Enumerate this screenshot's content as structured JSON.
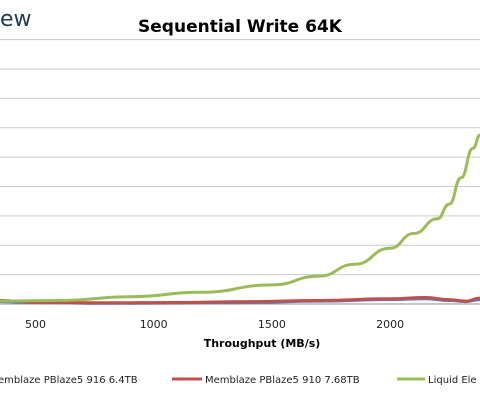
{
  "brand": {
    "text": "ew"
  },
  "chart_data": {
    "type": "line",
    "title": "Sequential Write 64K",
    "xlabel": "Throughput (MB/s)",
    "ylabel": "",
    "xlim": [
      350,
      2380
    ],
    "ylim": [
      0,
      9.6
    ],
    "x_ticks": [
      500,
      1000,
      1500,
      2000
    ],
    "y_gridlines": [
      1,
      2,
      3,
      4,
      5,
      6,
      7,
      8,
      9
    ],
    "grid": true,
    "legend_position": "bottom",
    "series": [
      {
        "name": "emblaze PBlaze5 916 6.4TB",
        "color": "#4f81bd",
        "points": [
          [
            350,
            0.08
          ],
          [
            500,
            0.05
          ],
          [
            800,
            0.02
          ],
          [
            1100,
            0.03
          ],
          [
            1400,
            0.05
          ],
          [
            1700,
            0.1
          ],
          [
            2000,
            0.15
          ],
          [
            2150,
            0.18
          ],
          [
            2250,
            0.12
          ],
          [
            2320,
            0.08
          ],
          [
            2380,
            0.15
          ]
        ]
      },
      {
        "name": "Memblaze PBlaze5 910 7.68TB",
        "color": "#c0504d",
        "points": [
          [
            350,
            0.12
          ],
          [
            500,
            0.06
          ],
          [
            800,
            0.04
          ],
          [
            1100,
            0.05
          ],
          [
            1400,
            0.08
          ],
          [
            1700,
            0.12
          ],
          [
            2000,
            0.18
          ],
          [
            2150,
            0.22
          ],
          [
            2250,
            0.15
          ],
          [
            2320,
            0.1
          ],
          [
            2380,
            0.2
          ]
        ]
      },
      {
        "name": "Liquid Ele",
        "color": "#9bbb59",
        "points": [
          [
            350,
            0.1
          ],
          [
            600,
            0.12
          ],
          [
            900,
            0.25
          ],
          [
            1200,
            0.4
          ],
          [
            1500,
            0.65
          ],
          [
            1700,
            0.95
          ],
          [
            1850,
            1.35
          ],
          [
            2000,
            1.9
          ],
          [
            2100,
            2.4
          ],
          [
            2200,
            2.9
          ],
          [
            2250,
            3.4
          ],
          [
            2300,
            4.3
          ],
          [
            2350,
            5.3
          ],
          [
            2380,
            5.75
          ]
        ]
      }
    ]
  }
}
